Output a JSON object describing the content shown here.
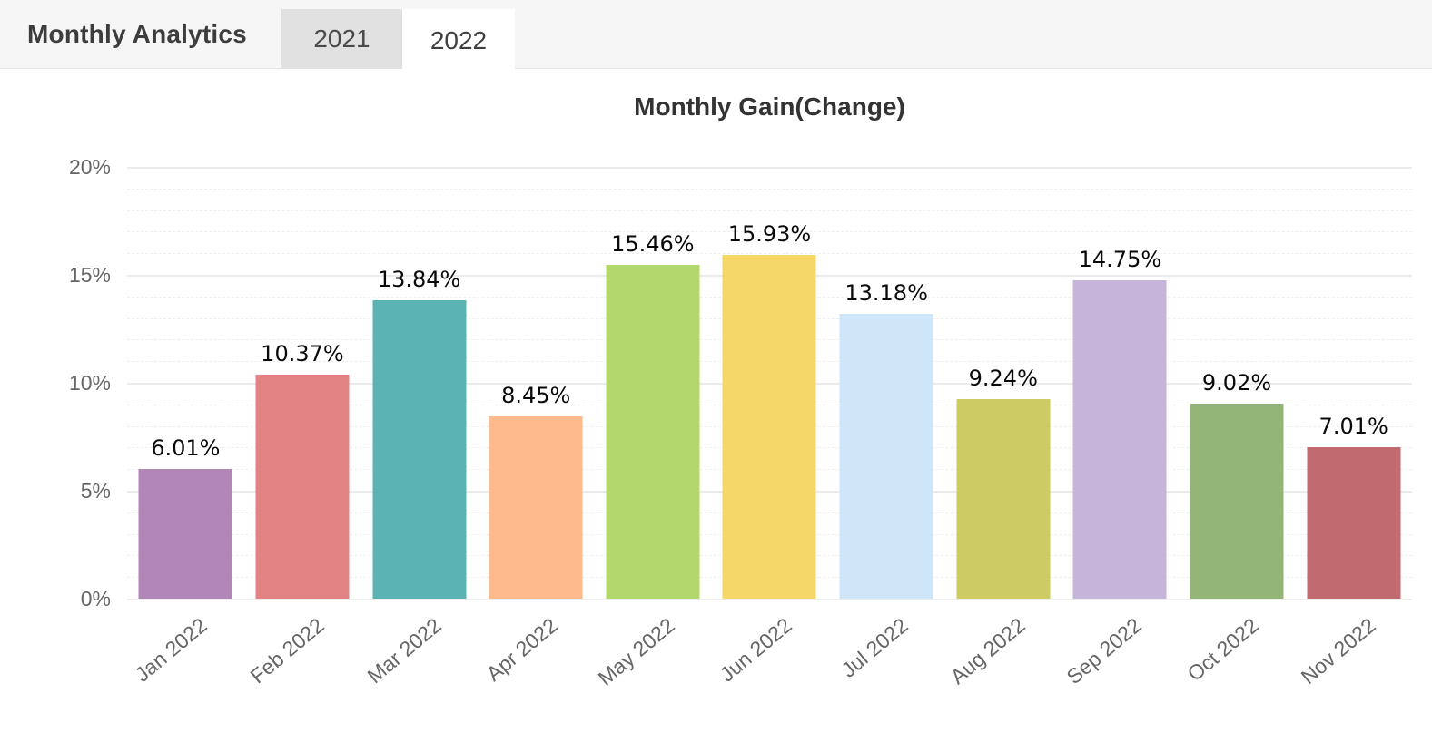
{
  "header": {
    "title": "Monthly Analytics",
    "tabs": [
      {
        "label": "2021",
        "active": false
      },
      {
        "label": "2022",
        "active": true
      }
    ]
  },
  "chart_data": {
    "type": "bar",
    "title": "Monthly Gain(Change)",
    "categories": [
      "Jan 2022",
      "Feb 2022",
      "Mar 2022",
      "Apr 2022",
      "May 2022",
      "Jun 2022",
      "Jul 2022",
      "Aug 2022",
      "Sep 2022",
      "Oct 2022",
      "Nov 2022"
    ],
    "values": [
      6.01,
      10.37,
      13.84,
      8.45,
      15.46,
      15.93,
      13.18,
      9.24,
      14.75,
      9.02,
      7.01
    ],
    "value_labels": [
      "6.01%",
      "10.37%",
      "13.84%",
      "8.45%",
      "15.46%",
      "15.93%",
      "13.18%",
      "9.24%",
      "14.75%",
      "9.02%",
      "7.01%"
    ],
    "bar_colors": [
      "#b287b8",
      "#e28383",
      "#5bb3b3",
      "#fdba8d",
      "#b4d76b",
      "#f4d768",
      "#cfe6f9",
      "#cccc63",
      "#c6b4da",
      "#93b678",
      "#c16a70"
    ],
    "xlabel": "",
    "ylabel": "",
    "ylim": [
      0,
      20
    ],
    "y_ticks": [
      "0%",
      "5%",
      "10%",
      "15%",
      "20%"
    ],
    "y_tick_values": [
      0,
      5,
      10,
      15,
      20
    ],
    "minor_grid_step": 1,
    "major_grid_step": 5,
    "grid": true,
    "legend_position": "none",
    "label_color": "#0a0a0a",
    "axis_text_color": "#666666"
  }
}
